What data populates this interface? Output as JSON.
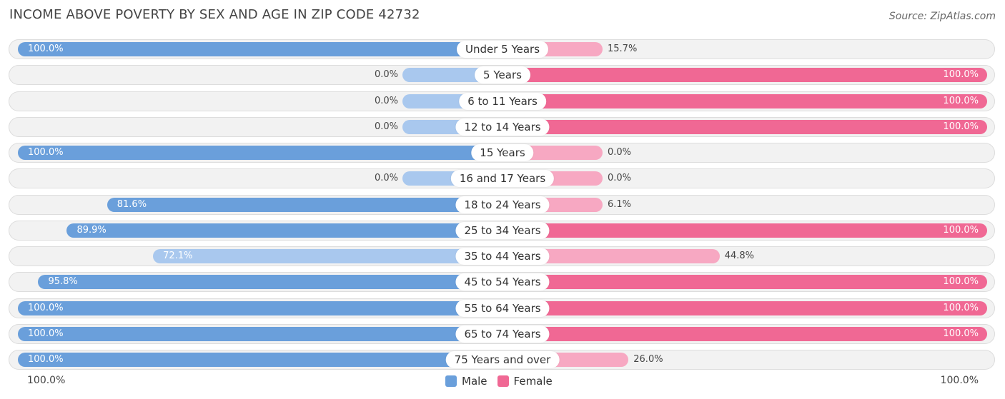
{
  "chart_data": {
    "type": "bar",
    "orientation": "horizontal-diverging",
    "title": "INCOME ABOVE POVERTY BY SEX AND AGE IN ZIP CODE 42732",
    "source": "Source: ZipAtlas.com",
    "categories": [
      "Under 5 Years",
      "5 Years",
      "6 to 11 Years",
      "12 to 14 Years",
      "15 Years",
      "16 and 17 Years",
      "18 to 24 Years",
      "25 to 34 Years",
      "35 to 44 Years",
      "45 to 54 Years",
      "55 to 64 Years",
      "65 to 74 Years",
      "75 Years and over"
    ],
    "series": [
      {
        "name": "Male",
        "color": "#6a9fdb",
        "values": [
          100.0,
          0.0,
          0.0,
          0.0,
          100.0,
          0.0,
          81.6,
          89.9,
          72.1,
          95.8,
          100.0,
          100.0,
          100.0
        ],
        "labels": [
          "100.0%",
          "0.0%",
          "0.0%",
          "0.0%",
          "100.0%",
          "0.0%",
          "81.6%",
          "89.9%",
          "72.1%",
          "95.8%",
          "100.0%",
          "100.0%",
          "100.0%"
        ]
      },
      {
        "name": "Female",
        "color": "#f06894",
        "values": [
          15.7,
          100.0,
          100.0,
          100.0,
          0.0,
          0.0,
          6.1,
          100.0,
          44.8,
          100.0,
          100.0,
          100.0,
          26.0
        ],
        "labels": [
          "15.7%",
          "100.0%",
          "100.0%",
          "100.0%",
          "0.0%",
          "0.0%",
          "6.1%",
          "100.0%",
          "44.8%",
          "100.0%",
          "100.0%",
          "100.0%",
          "26.0%"
        ]
      }
    ],
    "xlim": [
      0,
      100
    ],
    "axis_left_label": "100.0%",
    "axis_right_label": "100.0%",
    "legend_position": "bottom-center"
  }
}
